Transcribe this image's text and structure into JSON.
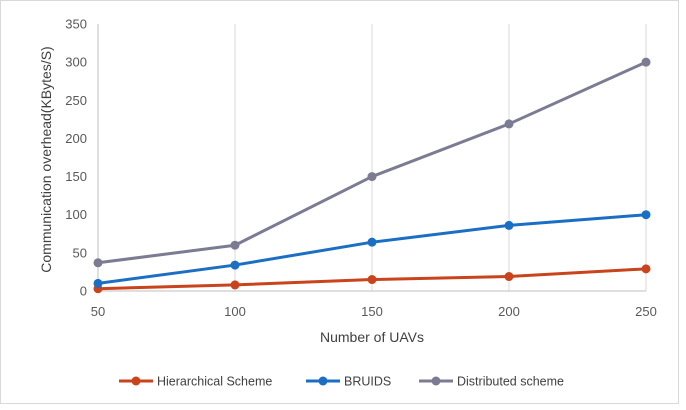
{
  "chart_data": {
    "type": "line",
    "title": "",
    "xlabel": "Number of UAVs",
    "ylabel": "Communication overhead(KBytes/S)",
    "x": [
      50,
      100,
      150,
      200,
      250
    ],
    "ylim": [
      0,
      350
    ],
    "yticks": [
      0,
      50,
      100,
      150,
      200,
      250,
      300,
      350
    ],
    "grid": "vertical",
    "legend_position": "bottom",
    "series": [
      {
        "name": "Hierarchical Scheme",
        "color": "#c9441d",
        "values": [
          3,
          8,
          15,
          19,
          29
        ]
      },
      {
        "name": "BRUIDS",
        "color": "#1a6fc4",
        "values": [
          10,
          34,
          64,
          86,
          100
        ]
      },
      {
        "name": "Distributed scheme",
        "color": "#7b7b93",
        "values": [
          37,
          60,
          150,
          219,
          300
        ]
      }
    ]
  }
}
